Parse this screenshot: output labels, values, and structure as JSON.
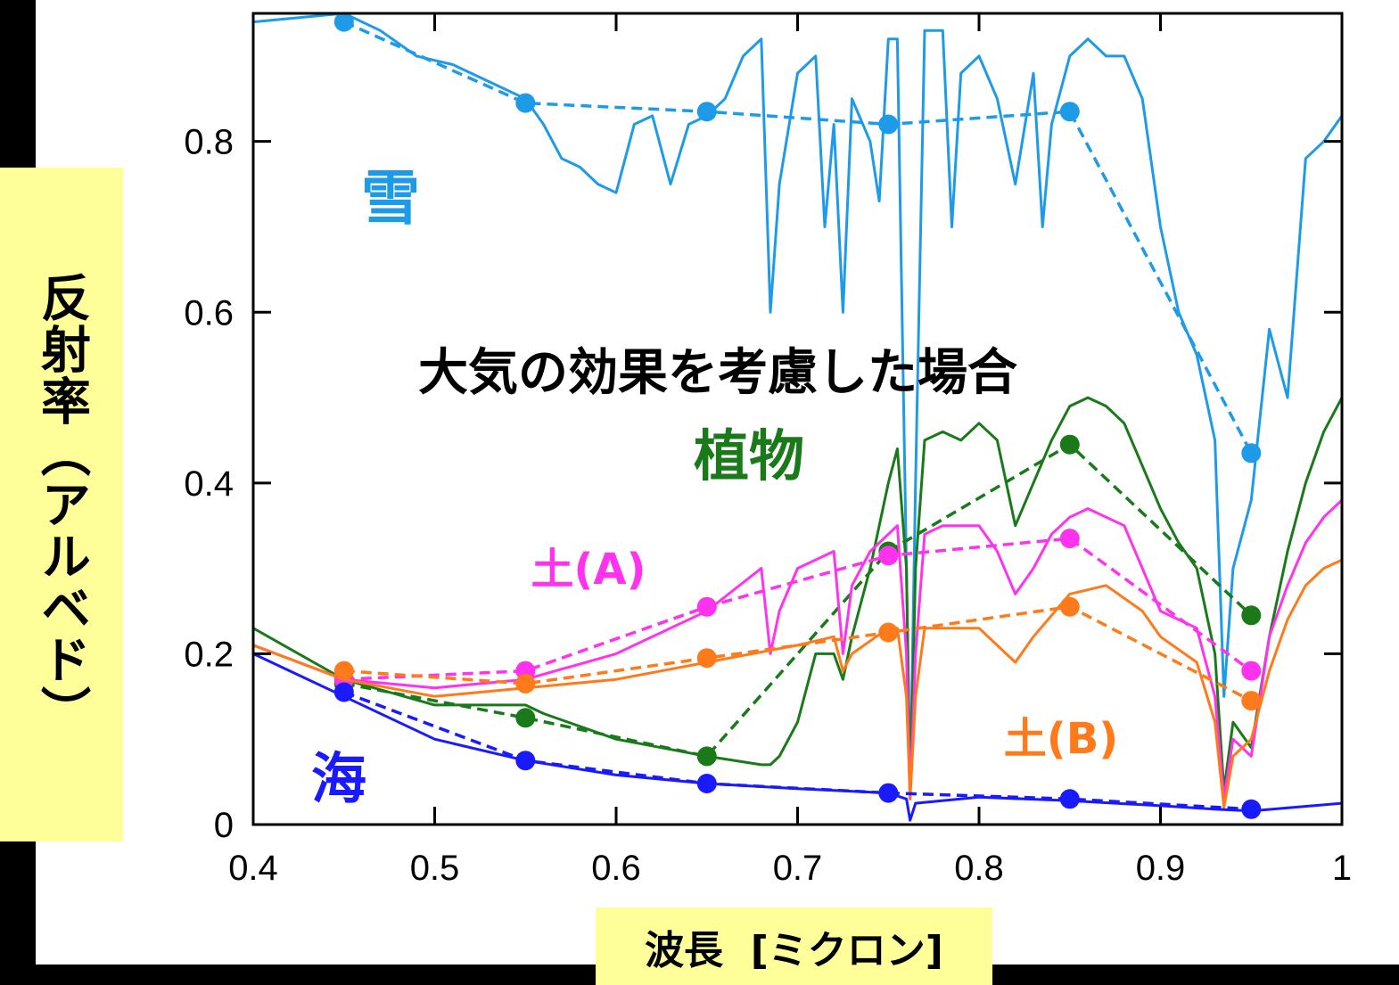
{
  "chart_data": {
    "type": "line",
    "title": "大気の効果を考慮した場合",
    "xlabel": "波長  [ミクロン]",
    "ylabel": "反射率（アルベド）",
    "xlim": [
      0.4,
      1.0
    ],
    "ylim": [
      0,
      0.95
    ],
    "xticks": [
      "0.4",
      "0.5",
      "0.6",
      "0.7",
      "0.8",
      "0.9",
      "1"
    ],
    "xtick_values": [
      0.4,
      0.5,
      0.6,
      0.7,
      0.8,
      0.9,
      1.0
    ],
    "yticks": [
      "0",
      "0.2",
      "0.4",
      "0.6",
      "0.8"
    ],
    "ytick_values": [
      0,
      0.2,
      0.4,
      0.6,
      0.8
    ],
    "grid": false,
    "series": [
      {
        "name": "雪",
        "color": "#1e9be8",
        "spectrum": [
          [
            0.4,
            0.94
          ],
          [
            0.45,
            0.95
          ],
          [
            0.47,
            0.93
          ],
          [
            0.49,
            0.9
          ],
          [
            0.51,
            0.89
          ],
          [
            0.53,
            0.87
          ],
          [
            0.55,
            0.85
          ],
          [
            0.56,
            0.82
          ],
          [
            0.57,
            0.78
          ],
          [
            0.58,
            0.77
          ],
          [
            0.59,
            0.75
          ],
          [
            0.6,
            0.74
          ],
          [
            0.61,
            0.82
          ],
          [
            0.62,
            0.83
          ],
          [
            0.63,
            0.75
          ],
          [
            0.64,
            0.82
          ],
          [
            0.65,
            0.83
          ],
          [
            0.66,
            0.85
          ],
          [
            0.67,
            0.9
          ],
          [
            0.68,
            0.92
          ],
          [
            0.685,
            0.6
          ],
          [
            0.69,
            0.75
          ],
          [
            0.7,
            0.88
          ],
          [
            0.71,
            0.9
          ],
          [
            0.715,
            0.7
          ],
          [
            0.72,
            0.82
          ],
          [
            0.725,
            0.6
          ],
          [
            0.73,
            0.85
          ],
          [
            0.74,
            0.8
          ],
          [
            0.745,
            0.73
          ],
          [
            0.75,
            0.92
          ],
          [
            0.755,
            0.92
          ],
          [
            0.76,
            0.3
          ],
          [
            0.762,
            0.04
          ],
          [
            0.765,
            0.4
          ],
          [
            0.77,
            0.93
          ],
          [
            0.78,
            0.93
          ],
          [
            0.785,
            0.7
          ],
          [
            0.79,
            0.88
          ],
          [
            0.8,
            0.9
          ],
          [
            0.81,
            0.85
          ],
          [
            0.82,
            0.75
          ],
          [
            0.83,
            0.88
          ],
          [
            0.835,
            0.7
          ],
          [
            0.84,
            0.82
          ],
          [
            0.85,
            0.9
          ],
          [
            0.86,
            0.92
          ],
          [
            0.87,
            0.9
          ],
          [
            0.88,
            0.9
          ],
          [
            0.89,
            0.85
          ],
          [
            0.9,
            0.7
          ],
          [
            0.91,
            0.6
          ],
          [
            0.92,
            0.55
          ],
          [
            0.93,
            0.45
          ],
          [
            0.935,
            0.15
          ],
          [
            0.94,
            0.3
          ],
          [
            0.95,
            0.38
          ],
          [
            0.96,
            0.58
          ],
          [
            0.97,
            0.5
          ],
          [
            0.98,
            0.78
          ],
          [
            0.99,
            0.8
          ],
          [
            1.0,
            0.83
          ]
        ],
        "markers": [
          [
            0.45,
            0.94
          ],
          [
            0.55,
            0.845
          ],
          [
            0.65,
            0.835
          ],
          [
            0.75,
            0.82
          ],
          [
            0.85,
            0.835
          ],
          [
            0.95,
            0.435
          ]
        ]
      },
      {
        "name": "植物",
        "color": "#1a7a1a",
        "spectrum": [
          [
            0.4,
            0.23
          ],
          [
            0.45,
            0.17
          ],
          [
            0.5,
            0.14
          ],
          [
            0.55,
            0.14
          ],
          [
            0.56,
            0.13
          ],
          [
            0.6,
            0.1
          ],
          [
            0.65,
            0.08
          ],
          [
            0.68,
            0.07
          ],
          [
            0.685,
            0.07
          ],
          [
            0.69,
            0.08
          ],
          [
            0.7,
            0.12
          ],
          [
            0.71,
            0.2
          ],
          [
            0.72,
            0.2
          ],
          [
            0.725,
            0.17
          ],
          [
            0.73,
            0.22
          ],
          [
            0.74,
            0.3
          ],
          [
            0.75,
            0.4
          ],
          [
            0.755,
            0.44
          ],
          [
            0.76,
            0.3
          ],
          [
            0.762,
            0.03
          ],
          [
            0.765,
            0.3
          ],
          [
            0.77,
            0.45
          ],
          [
            0.78,
            0.46
          ],
          [
            0.79,
            0.45
          ],
          [
            0.8,
            0.47
          ],
          [
            0.81,
            0.45
          ],
          [
            0.82,
            0.35
          ],
          [
            0.83,
            0.4
          ],
          [
            0.84,
            0.45
          ],
          [
            0.85,
            0.49
          ],
          [
            0.86,
            0.5
          ],
          [
            0.87,
            0.49
          ],
          [
            0.88,
            0.47
          ],
          [
            0.89,
            0.42
          ],
          [
            0.9,
            0.37
          ],
          [
            0.91,
            0.33
          ],
          [
            0.92,
            0.3
          ],
          [
            0.93,
            0.2
          ],
          [
            0.935,
            0.04
          ],
          [
            0.94,
            0.12
          ],
          [
            0.95,
            0.09
          ],
          [
            0.96,
            0.22
          ],
          [
            0.97,
            0.32
          ],
          [
            0.98,
            0.4
          ],
          [
            0.99,
            0.46
          ],
          [
            1.0,
            0.5
          ]
        ],
        "markers": [
          [
            0.45,
            0.165
          ],
          [
            0.55,
            0.125
          ],
          [
            0.65,
            0.08
          ],
          [
            0.75,
            0.32
          ],
          [
            0.85,
            0.445
          ],
          [
            0.95,
            0.245
          ]
        ]
      },
      {
        "name": "土(A)",
        "color": "#ff33ee",
        "spectrum": [
          [
            0.4,
            0.21
          ],
          [
            0.45,
            0.17
          ],
          [
            0.5,
            0.16
          ],
          [
            0.55,
            0.17
          ],
          [
            0.6,
            0.2
          ],
          [
            0.65,
            0.25
          ],
          [
            0.68,
            0.3
          ],
          [
            0.685,
            0.2
          ],
          [
            0.69,
            0.25
          ],
          [
            0.7,
            0.3
          ],
          [
            0.72,
            0.32
          ],
          [
            0.725,
            0.2
          ],
          [
            0.73,
            0.28
          ],
          [
            0.74,
            0.32
          ],
          [
            0.75,
            0.34
          ],
          [
            0.755,
            0.35
          ],
          [
            0.76,
            0.2
          ],
          [
            0.762,
            0.03
          ],
          [
            0.765,
            0.2
          ],
          [
            0.77,
            0.34
          ],
          [
            0.78,
            0.35
          ],
          [
            0.8,
            0.35
          ],
          [
            0.81,
            0.32
          ],
          [
            0.82,
            0.27
          ],
          [
            0.83,
            0.3
          ],
          [
            0.84,
            0.34
          ],
          [
            0.85,
            0.36
          ],
          [
            0.86,
            0.37
          ],
          [
            0.88,
            0.35
          ],
          [
            0.89,
            0.3
          ],
          [
            0.9,
            0.25
          ],
          [
            0.92,
            0.23
          ],
          [
            0.93,
            0.15
          ],
          [
            0.935,
            0.03
          ],
          [
            0.94,
            0.1
          ],
          [
            0.95,
            0.08
          ],
          [
            0.96,
            0.22
          ],
          [
            0.97,
            0.28
          ],
          [
            0.98,
            0.33
          ],
          [
            0.99,
            0.36
          ],
          [
            1.0,
            0.38
          ]
        ],
        "markers": [
          [
            0.45,
            0.17
          ],
          [
            0.55,
            0.18
          ],
          [
            0.65,
            0.255
          ],
          [
            0.75,
            0.315
          ],
          [
            0.85,
            0.335
          ],
          [
            0.95,
            0.18
          ]
        ]
      },
      {
        "name": "土(B)",
        "color": "#ff7a1a",
        "spectrum": [
          [
            0.4,
            0.21
          ],
          [
            0.45,
            0.17
          ],
          [
            0.5,
            0.15
          ],
          [
            0.55,
            0.16
          ],
          [
            0.6,
            0.17
          ],
          [
            0.65,
            0.19
          ],
          [
            0.7,
            0.21
          ],
          [
            0.72,
            0.22
          ],
          [
            0.725,
            0.18
          ],
          [
            0.73,
            0.2
          ],
          [
            0.75,
            0.23
          ],
          [
            0.755,
            0.23
          ],
          [
            0.76,
            0.15
          ],
          [
            0.762,
            0.03
          ],
          [
            0.765,
            0.15
          ],
          [
            0.77,
            0.23
          ],
          [
            0.8,
            0.23
          ],
          [
            0.82,
            0.19
          ],
          [
            0.83,
            0.22
          ],
          [
            0.85,
            0.27
          ],
          [
            0.87,
            0.28
          ],
          [
            0.89,
            0.25
          ],
          [
            0.9,
            0.22
          ],
          [
            0.92,
            0.19
          ],
          [
            0.93,
            0.12
          ],
          [
            0.935,
            0.02
          ],
          [
            0.94,
            0.08
          ],
          [
            0.95,
            0.1
          ],
          [
            0.96,
            0.18
          ],
          [
            0.97,
            0.24
          ],
          [
            0.98,
            0.28
          ],
          [
            0.99,
            0.3
          ],
          [
            1.0,
            0.31
          ]
        ],
        "markers": [
          [
            0.45,
            0.18
          ],
          [
            0.55,
            0.165
          ],
          [
            0.65,
            0.195
          ],
          [
            0.75,
            0.225
          ],
          [
            0.85,
            0.255
          ],
          [
            0.95,
            0.145
          ]
        ]
      },
      {
        "name": "海",
        "color": "#1a1aff",
        "spectrum": [
          [
            0.4,
            0.2
          ],
          [
            0.45,
            0.15
          ],
          [
            0.5,
            0.1
          ],
          [
            0.55,
            0.075
          ],
          [
            0.6,
            0.058
          ],
          [
            0.65,
            0.048
          ],
          [
            0.7,
            0.042
          ],
          [
            0.75,
            0.037
          ],
          [
            0.76,
            0.03
          ],
          [
            0.762,
            0.005
          ],
          [
            0.765,
            0.025
          ],
          [
            0.8,
            0.032
          ],
          [
            0.85,
            0.028
          ],
          [
            0.9,
            0.022
          ],
          [
            0.93,
            0.018
          ],
          [
            0.95,
            0.016
          ],
          [
            1.0,
            0.025
          ]
        ],
        "markers": [
          [
            0.45,
            0.155
          ],
          [
            0.55,
            0.075
          ],
          [
            0.65,
            0.048
          ],
          [
            0.75,
            0.037
          ],
          [
            0.85,
            0.03
          ],
          [
            0.95,
            0.018
          ]
        ]
      }
    ]
  }
}
